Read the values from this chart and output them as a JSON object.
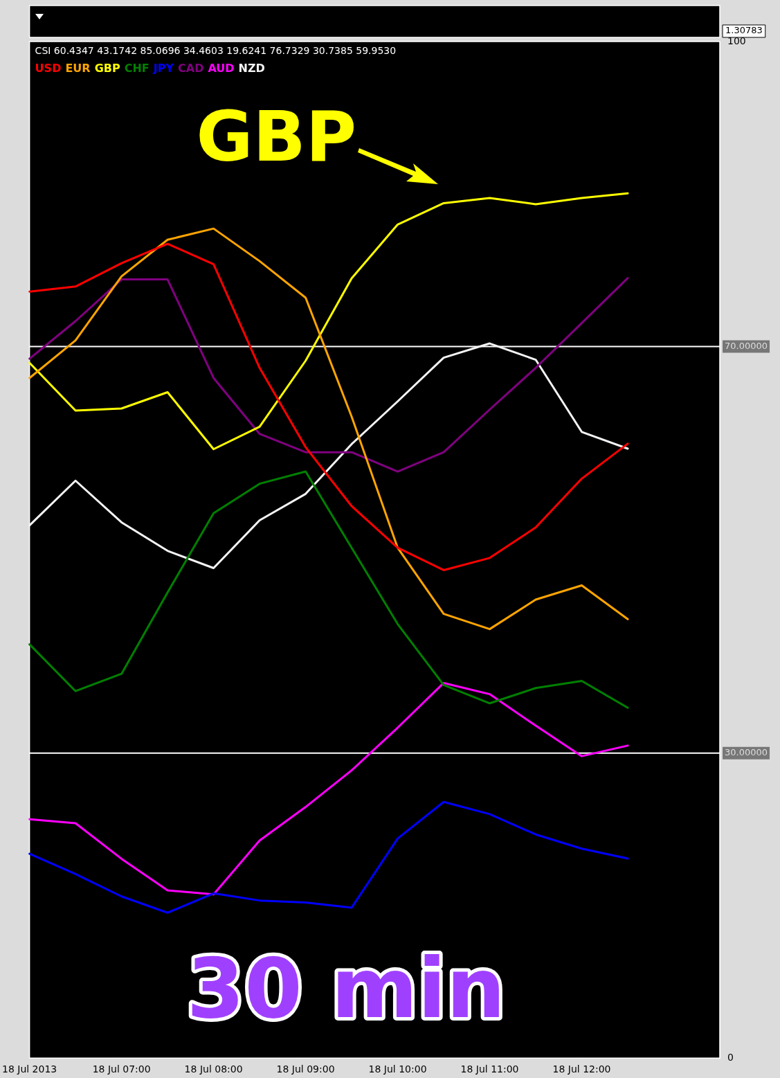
{
  "chart_data": {
    "type": "line",
    "title": "CSI 60.4347 43.1742 85.0696 34.4603 19.6241 76.7329 30.7385 59.9530",
    "categories": [
      "18 Jul 2013",
      null,
      "18 Jul 07:00",
      null,
      "18 Jul 08:00",
      null,
      "18 Jul 09:00",
      null,
      "18 Jul 10:00",
      null,
      "18 Jul 11:00",
      null,
      "18 Jul 12:00",
      null,
      null,
      null
    ],
    "series": [
      {
        "name": "USD",
        "color": "#ff0000",
        "values": [
          75.4,
          75.9,
          78.2,
          80.1,
          78.1,
          67.9,
          60.1,
          54.3,
          50.2,
          48.0,
          49.2,
          52.2,
          57.0,
          60.4347,
          null,
          null
        ]
      },
      {
        "name": "EUR",
        "color": "#ffa500",
        "values": [
          66.9,
          70.6,
          76.9,
          80.5,
          81.6,
          78.4,
          74.8,
          63.1,
          50.2,
          43.7,
          42.2,
          45.1,
          46.5,
          43.1742,
          null,
          null
        ]
      },
      {
        "name": "GBP",
        "color": "#ffff00",
        "values": [
          68.4,
          63.7,
          63.9,
          65.5,
          59.9,
          62.1,
          68.6,
          76.7,
          82.0,
          84.1,
          84.6,
          84.0,
          84.6,
          85.0696,
          null,
          null
        ]
      },
      {
        "name": "CHF",
        "color": "#008000",
        "values": [
          40.7,
          36.1,
          37.8,
          45.8,
          53.6,
          56.5,
          57.7,
          50.2,
          42.7,
          36.7,
          34.9,
          36.4,
          37.1,
          34.4603,
          null,
          null
        ]
      },
      {
        "name": "JPY",
        "color": "#0000ff",
        "values": [
          20.1,
          18.1,
          15.9,
          14.3,
          16.2,
          15.5,
          15.3,
          14.8,
          21.6,
          25.2,
          24.0,
          22.0,
          20.6,
          19.6241,
          null,
          null
        ]
      },
      {
        "name": "CAD",
        "color": "#800080",
        "values": [
          68.8,
          72.5,
          76.6,
          76.6,
          66.9,
          61.4,
          59.6,
          59.6,
          57.7,
          59.6,
          63.8,
          67.9,
          72.3,
          76.7329,
          null,
          null
        ]
      },
      {
        "name": "AUD",
        "color": "#ff00ff",
        "values": [
          23.5,
          23.1,
          19.6,
          16.5,
          16.1,
          21.4,
          24.7,
          28.3,
          32.5,
          36.9,
          35.8,
          32.7,
          29.7,
          30.7385,
          null,
          null
        ]
      },
      {
        "name": "NZD",
        "color": "#f4f4f4",
        "values": [
          52.4,
          56.8,
          52.7,
          49.9,
          48.2,
          52.9,
          55.5,
          60.4,
          64.6,
          68.9,
          70.3,
          68.7,
          61.6,
          59.953,
          null,
          null
        ]
      }
    ],
    "ylim": [
      0,
      100
    ],
    "yticks": [
      0,
      100
    ],
    "ref_lines": [
      {
        "axis": "y",
        "value": 70,
        "label": "70.00000",
        "color": "#ffffff"
      },
      {
        "axis": "y",
        "value": 30,
        "label": "30.00000",
        "color": "#ffffff"
      }
    ],
    "annotations": [
      "1.30783",
      "30 min",
      "GBP"
    ],
    "legend": "top left",
    "grid": false,
    "marker": "none",
    "line_style": "solid"
  }
}
